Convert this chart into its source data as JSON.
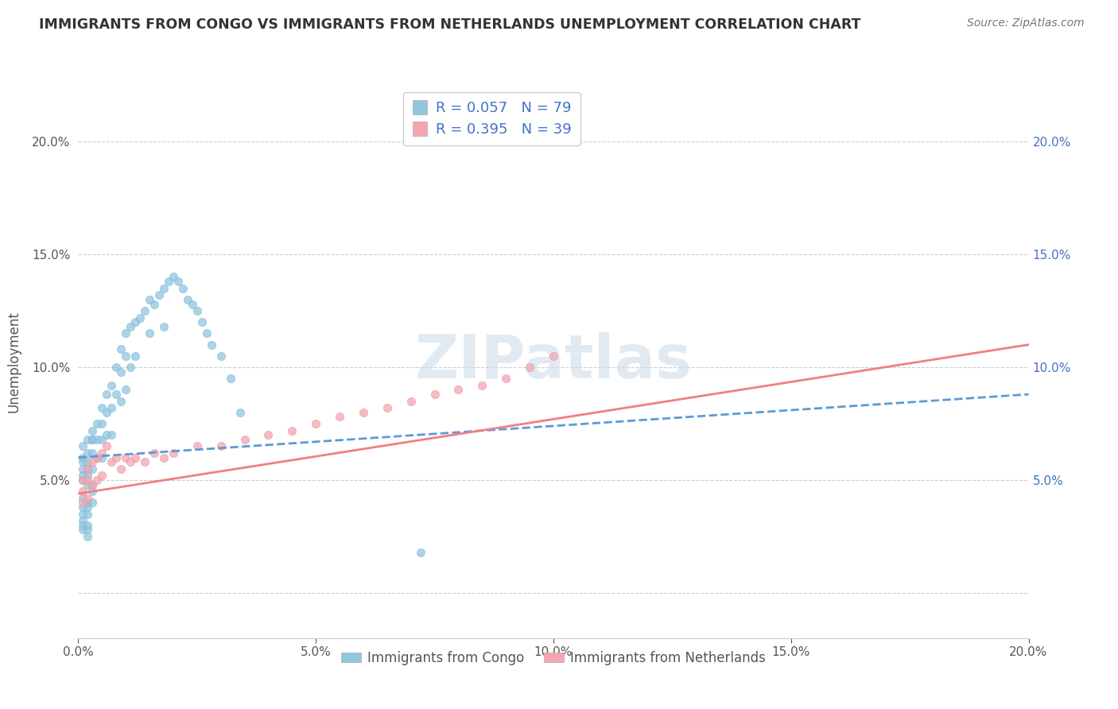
{
  "title": "IMMIGRANTS FROM CONGO VS IMMIGRANTS FROM NETHERLANDS UNEMPLOYMENT CORRELATION CHART",
  "source": "Source: ZipAtlas.com",
  "ylabel": "Unemployment",
  "xlim": [
    0.0,
    0.2
  ],
  "ylim": [
    -0.02,
    0.225
  ],
  "yticks": [
    0.0,
    0.05,
    0.1,
    0.15,
    0.2
  ],
  "ytick_labels": [
    "",
    "5.0%",
    "10.0%",
    "15.0%",
    "20.0%"
  ],
  "xticks": [
    0.0,
    0.05,
    0.1,
    0.15,
    0.2
  ],
  "xtick_labels": [
    "0.0%",
    "5.0%",
    "10.0%",
    "15.0%",
    "20.0%"
  ],
  "right_yticks": [
    0.05,
    0.1,
    0.15,
    0.2
  ],
  "right_ytick_labels": [
    "5.0%",
    "10.0%",
    "15.0%",
    "20.0%"
  ],
  "congo_R": 0.057,
  "congo_N": 79,
  "netherlands_R": 0.395,
  "netherlands_N": 39,
  "congo_color": "#92c5de",
  "netherlands_color": "#f4a6b0",
  "congo_line_color": "#5b9bd5",
  "netherlands_line_color": "#f08080",
  "watermark": "ZIPatlas",
  "legend_label_1": "Immigrants from Congo",
  "legend_label_2": "Immigrants from Netherlands",
  "congo_x": [
    0.001,
    0.001,
    0.001,
    0.001,
    0.001,
    0.001,
    0.002,
    0.002,
    0.002,
    0.002,
    0.002,
    0.002,
    0.003,
    0.003,
    0.003,
    0.003,
    0.003,
    0.004,
    0.004,
    0.004,
    0.005,
    0.005,
    0.005,
    0.005,
    0.006,
    0.006,
    0.006,
    0.007,
    0.007,
    0.007,
    0.008,
    0.008,
    0.009,
    0.009,
    0.009,
    0.01,
    0.01,
    0.01,
    0.011,
    0.011,
    0.012,
    0.012,
    0.013,
    0.014,
    0.015,
    0.015,
    0.016,
    0.017,
    0.018,
    0.018,
    0.019,
    0.02,
    0.021,
    0.022,
    0.023,
    0.024,
    0.025,
    0.026,
    0.027,
    0.028,
    0.03,
    0.032,
    0.034,
    0.001,
    0.001,
    0.001,
    0.001,
    0.001,
    0.001,
    0.002,
    0.002,
    0.002,
    0.002,
    0.002,
    0.002,
    0.003,
    0.003,
    0.072,
    0.003
  ],
  "congo_y": [
    0.065,
    0.06,
    0.058,
    0.055,
    0.052,
    0.05,
    0.068,
    0.062,
    0.058,
    0.055,
    0.052,
    0.048,
    0.072,
    0.068,
    0.062,
    0.055,
    0.048,
    0.075,
    0.068,
    0.06,
    0.082,
    0.075,
    0.068,
    0.06,
    0.088,
    0.08,
    0.07,
    0.092,
    0.082,
    0.07,
    0.1,
    0.088,
    0.108,
    0.098,
    0.085,
    0.115,
    0.105,
    0.09,
    0.118,
    0.1,
    0.12,
    0.105,
    0.122,
    0.125,
    0.13,
    0.115,
    0.128,
    0.132,
    0.135,
    0.118,
    0.138,
    0.14,
    0.138,
    0.135,
    0.13,
    0.128,
    0.125,
    0.12,
    0.115,
    0.11,
    0.105,
    0.095,
    0.08,
    0.042,
    0.038,
    0.035,
    0.032,
    0.03,
    0.028,
    0.04,
    0.038,
    0.035,
    0.03,
    0.028,
    0.025,
    0.045,
    0.04,
    0.018,
    0.068
  ],
  "netherlands_x": [
    0.001,
    0.001,
    0.001,
    0.002,
    0.002,
    0.002,
    0.003,
    0.003,
    0.004,
    0.004,
    0.005,
    0.005,
    0.006,
    0.007,
    0.008,
    0.009,
    0.01,
    0.011,
    0.012,
    0.014,
    0.016,
    0.018,
    0.02,
    0.025,
    0.03,
    0.035,
    0.04,
    0.045,
    0.05,
    0.055,
    0.06,
    0.065,
    0.07,
    0.075,
    0.08,
    0.085,
    0.09,
    0.095,
    0.1
  ],
  "netherlands_y": [
    0.05,
    0.045,
    0.04,
    0.055,
    0.05,
    0.042,
    0.058,
    0.048,
    0.06,
    0.05,
    0.062,
    0.052,
    0.065,
    0.058,
    0.06,
    0.055,
    0.06,
    0.058,
    0.06,
    0.058,
    0.062,
    0.06,
    0.062,
    0.065,
    0.065,
    0.068,
    0.07,
    0.072,
    0.075,
    0.078,
    0.08,
    0.082,
    0.085,
    0.088,
    0.09,
    0.092,
    0.095,
    0.1,
    0.105
  ],
  "congo_trend_x0": 0.0,
  "congo_trend_x1": 0.2,
  "congo_trend_y0": 0.06,
  "congo_trend_y1": 0.088,
  "neth_trend_x0": 0.0,
  "neth_trend_x1": 0.2,
  "neth_trend_y0": 0.044,
  "neth_trend_y1": 0.11
}
